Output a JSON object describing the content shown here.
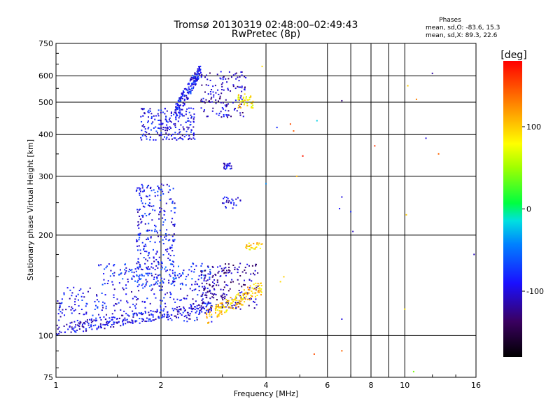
{
  "chart_data": {
    "type": "scatter",
    "title": "Tromsø 20130319 02:48:00–02:49:43",
    "subtitle": "RwPretec (8p)",
    "xlabel": "Frequency [MHz]",
    "ylabel": "Stationary phase Virtual Height [km]",
    "x_scale": "log",
    "y_scale": "log",
    "xlim": [
      1,
      16
    ],
    "ylim": [
      75,
      750
    ],
    "x_ticks": [
      1,
      2,
      4,
      6,
      8,
      10,
      16
    ],
    "x_tick_labels": [
      "1",
      "2",
      "4",
      "6",
      "8",
      "10",
      "16"
    ],
    "y_ticks": [
      75,
      100,
      200,
      300,
      400,
      500,
      600,
      750
    ],
    "y_tick_labels": [
      "75",
      "100",
      "200",
      "300",
      "400",
      "500",
      "600",
      "750"
    ],
    "x_minor_lines": [
      7,
      9
    ],
    "grid": true,
    "stats": {
      "heading": "Phases",
      "line_o": "mean, sd,O: -83.6, 15.3",
      "line_x": "mean, sd,X:  89.3, 22.6"
    },
    "colorbar": {
      "label": "[deg]",
      "range": [
        -180,
        180
      ],
      "ticks": [
        100,
        0,
        -100
      ],
      "tick_labels": [
        "100",
        "0",
        "-100"
      ],
      "colormap": "rainbow"
    },
    "clusters": [
      {
        "f_range": [
          1.0,
          2.8
        ],
        "h": [
          100,
          125
        ],
        "phase": -100,
        "trace": "o-lower"
      },
      {
        "f_range": [
          1.0,
          2.8
        ],
        "h": [
          110,
          140
        ],
        "phase": -95,
        "trace": "o-mid"
      },
      {
        "f_range": [
          1.7,
          2.2
        ],
        "h": [
          140,
          285
        ],
        "phase": -90,
        "trace": "o-cusp"
      },
      {
        "f_range": [
          1.3,
          2.8
        ],
        "h": [
          140,
          165
        ],
        "phase": -80,
        "trace": "o-upper"
      },
      {
        "f_range": [
          2.6,
          3.8
        ],
        "h": [
          120,
          165
        ],
        "phase": -120,
        "trace": "o-spread"
      },
      {
        "f_range": [
          2.7,
          3.9
        ],
        "h": [
          108,
          145
        ],
        "phase": 100,
        "trace": "x-yellow"
      },
      {
        "f_range": [
          3.5,
          3.9
        ],
        "h": [
          180,
          190
        ],
        "phase": 95,
        "trace": "x-yellow-upper"
      },
      {
        "f_range": [
          1.75,
          2.5
        ],
        "h": [
          385,
          480
        ],
        "phase": -95,
        "trace": "f2-lower"
      },
      {
        "f_range": [
          2.2,
          2.6
        ],
        "h": [
          440,
          640
        ],
        "phase": -90,
        "trace": "f2-cusp"
      },
      {
        "f_range": [
          2.6,
          3.5
        ],
        "h": [
          450,
          620
        ],
        "phase": -110,
        "trace": "f2-upper"
      },
      {
        "f_range": [
          3.3,
          3.7
        ],
        "h": [
          480,
          530
        ],
        "phase": 90,
        "trace": "f2-x"
      },
      {
        "f_range": [
          3.0,
          3.2
        ],
        "h": [
          315,
          330
        ],
        "phase": -100,
        "trace": "mid-blob"
      },
      {
        "f_range": [
          3.0,
          3.4
        ],
        "h": [
          240,
          260
        ],
        "phase": -100,
        "trace": "mid-blob-2"
      }
    ],
    "sparse_points": [
      {
        "f": 6.6,
        "h": 505,
        "phase": -130
      },
      {
        "f": 6.6,
        "h": 260,
        "phase": -100
      },
      {
        "f": 6.5,
        "h": 240,
        "phase": -90
      },
      {
        "f": 7.1,
        "h": 205,
        "phase": -110
      },
      {
        "f": 7.0,
        "h": 235,
        "phase": -80
      },
      {
        "f": 6.6,
        "h": 112,
        "phase": -100
      },
      {
        "f": 6.6,
        "h": 90,
        "phase": 140
      },
      {
        "f": 5.5,
        "h": 88,
        "phase": 150
      },
      {
        "f": 10.2,
        "h": 560,
        "phase": 100
      },
      {
        "f": 10.8,
        "h": 510,
        "phase": 130
      },
      {
        "f": 12.0,
        "h": 610,
        "phase": -120
      },
      {
        "f": 11.5,
        "h": 390,
        "phase": -100
      },
      {
        "f": 12.5,
        "h": 350,
        "phase": 140
      },
      {
        "f": 8.2,
        "h": 370,
        "phase": 160
      },
      {
        "f": 5.1,
        "h": 345,
        "phase": 170
      },
      {
        "f": 4.7,
        "h": 430,
        "phase": 150
      },
      {
        "f": 4.8,
        "h": 410,
        "phase": 145
      },
      {
        "f": 5.6,
        "h": 440,
        "phase": -20
      },
      {
        "f": 4.3,
        "h": 420,
        "phase": -80
      },
      {
        "f": 4.9,
        "h": 300,
        "phase": 110
      },
      {
        "f": 10.1,
        "h": 230,
        "phase": 100
      },
      {
        "f": 10.0,
        "h": 120,
        "phase": 90
      },
      {
        "f": 10.6,
        "h": 78,
        "phase": 40
      },
      {
        "f": 15.8,
        "h": 175,
        "phase": -110
      },
      {
        "f": 4.0,
        "h": 285,
        "phase": -40
      },
      {
        "f": 3.9,
        "h": 640,
        "phase": 95
      },
      {
        "f": 4.4,
        "h": 145,
        "phase": 95
      },
      {
        "f": 4.5,
        "h": 150,
        "phase": 100
      }
    ]
  }
}
